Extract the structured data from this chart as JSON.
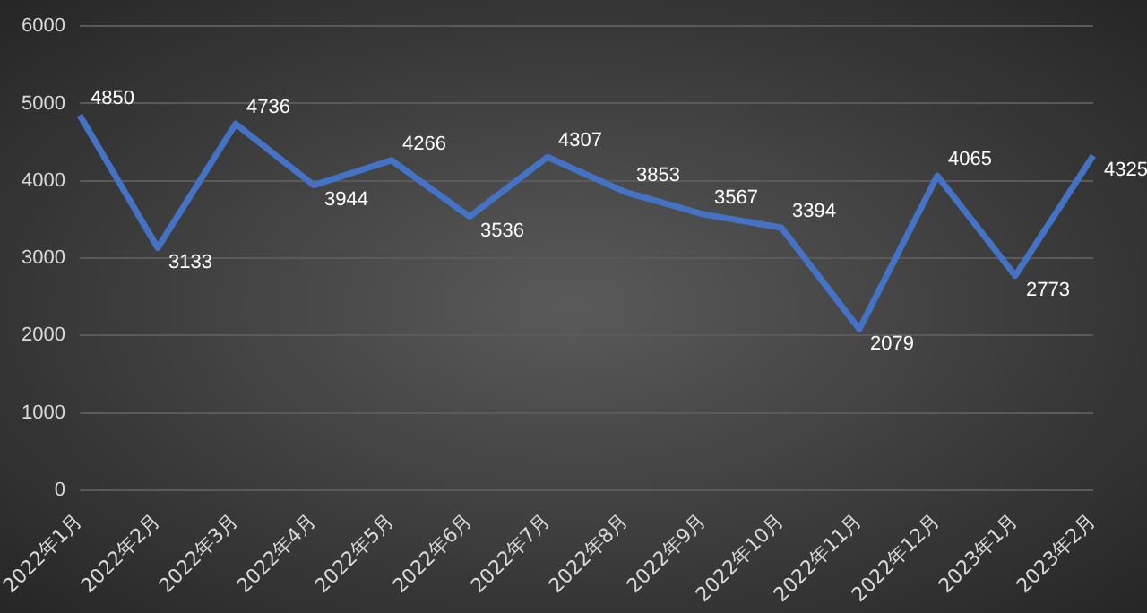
{
  "chart_data": {
    "type": "line",
    "categories": [
      "2022年1月",
      "2022年2月",
      "2022年3月",
      "2022年4月",
      "2022年5月",
      "2022年6月",
      "2022年7月",
      "2022年8月",
      "2022年9月",
      "2022年10月",
      "2022年11月",
      "2022年12月",
      "2023年1月",
      "2023年2月"
    ],
    "series": [
      {
        "color": "#4472c4",
        "values": [
          4850,
          3133,
          4736,
          3944,
          4266,
          3536,
          4307,
          3853,
          3567,
          3394,
          2079,
          4065,
          2773,
          4325
        ]
      }
    ],
    "ylim": [
      0,
      6000
    ],
    "yticks": [
      0,
      1000,
      2000,
      3000,
      4000,
      5000,
      6000
    ],
    "grid": "y",
    "legend": false,
    "marker": "none",
    "line_style": "solid",
    "data_labels": true
  }
}
